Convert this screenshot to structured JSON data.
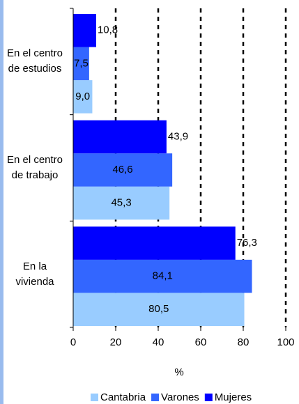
{
  "chart_data": {
    "type": "barh",
    "categories": [
      "En el centro de estudios",
      "En el centro de trabajo",
      "En la vivienda"
    ],
    "series": [
      {
        "name": "Cantabria",
        "color": "#99ccff",
        "values": [
          9.0,
          45.3,
          80.5
        ],
        "value_labels": [
          "9,0",
          "45,3",
          "80,5"
        ]
      },
      {
        "name": "Varones",
        "color": "#3366ff",
        "values": [
          7.5,
          46.6,
          84.1
        ],
        "value_labels": [
          "7,5",
          "46,6",
          "84,1"
        ]
      },
      {
        "name": "Mujeres",
        "color": "#0000ff",
        "values": [
          10.8,
          43.9,
          76.3
        ],
        "value_labels": [
          "10,8",
          "43,9",
          "76,3"
        ]
      }
    ],
    "xlabel": "%",
    "xlim": [
      0,
      100
    ],
    "xticks": [
      0,
      20,
      40,
      60,
      80,
      100
    ],
    "grid": true,
    "legend": "bottom"
  }
}
